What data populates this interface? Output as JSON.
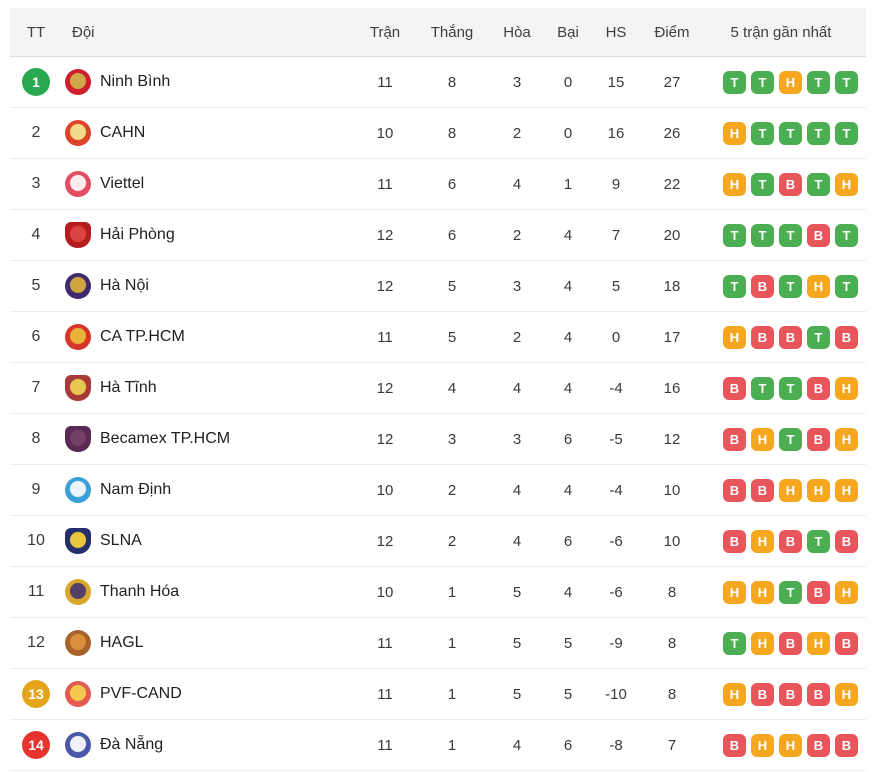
{
  "colors": {
    "form": {
      "T": "#4cae52",
      "H": "#f5a81f",
      "B": "#e8555a"
    },
    "position_badges": {
      "green": "#29a94f",
      "yellow": "#e4a51c",
      "red": "#e6332e"
    },
    "header_bg": "#f4f4f4"
  },
  "table": {
    "headers": {
      "position": "TT",
      "team": "Đội",
      "played": "Trận",
      "won": "Thắng",
      "drawn": "Hòa",
      "lost": "Bại",
      "goal_diff": "HS",
      "points": "Điểm",
      "form": "5 trận gần nhất"
    },
    "rows": [
      {
        "position": "1",
        "position_badge": "green",
        "team": "Ninh Bình",
        "logo": {
          "shape": "circle",
          "outer": "#cf1f2e",
          "inner": "#cfa84a"
        },
        "played": "11",
        "won": "8",
        "drawn": "3",
        "lost": "0",
        "goal_diff": "15",
        "points": "27",
        "form": [
          "T",
          "T",
          "H",
          "T",
          "T"
        ]
      },
      {
        "position": "2",
        "position_badge": null,
        "team": "CAHN",
        "logo": {
          "shape": "circle",
          "outer": "#dd4327",
          "inner": "#f3d98c"
        },
        "played": "10",
        "won": "8",
        "drawn": "2",
        "lost": "0",
        "goal_diff": "16",
        "points": "26",
        "form": [
          "H",
          "T",
          "T",
          "T",
          "T"
        ]
      },
      {
        "position": "3",
        "position_badge": null,
        "team": "Viettel",
        "logo": {
          "shape": "circle",
          "outer": "#e34d63",
          "inner": "#fdecef"
        },
        "played": "11",
        "won": "6",
        "drawn": "4",
        "lost": "1",
        "goal_diff": "9",
        "points": "22",
        "form": [
          "H",
          "T",
          "B",
          "T",
          "H"
        ]
      },
      {
        "position": "4",
        "position_badge": null,
        "team": "Hải Phòng",
        "logo": {
          "shape": "shield",
          "outer": "#b71c1c",
          "inner": "#d9453e"
        },
        "played": "12",
        "won": "6",
        "drawn": "2",
        "lost": "4",
        "goal_diff": "7",
        "points": "20",
        "form": [
          "T",
          "T",
          "T",
          "B",
          "T"
        ]
      },
      {
        "position": "5",
        "position_badge": null,
        "team": "Hà Nội",
        "logo": {
          "shape": "circle",
          "outer": "#3f2a6e",
          "inner": "#cfa63e"
        },
        "played": "12",
        "won": "5",
        "drawn": "3",
        "lost": "4",
        "goal_diff": "5",
        "points": "18",
        "form": [
          "T",
          "B",
          "T",
          "H",
          "T"
        ]
      },
      {
        "position": "6",
        "position_badge": null,
        "team": "CA TP.HCM",
        "logo": {
          "shape": "circle",
          "outer": "#d7342a",
          "inner": "#e8b53a"
        },
        "played": "11",
        "won": "5",
        "drawn": "2",
        "lost": "4",
        "goal_diff": "0",
        "points": "17",
        "form": [
          "H",
          "B",
          "B",
          "T",
          "B"
        ]
      },
      {
        "position": "7",
        "position_badge": null,
        "team": "Hà Tĩnh",
        "logo": {
          "shape": "shield",
          "outer": "#a93a3a",
          "inner": "#e8c84f"
        },
        "played": "12",
        "won": "4",
        "drawn": "4",
        "lost": "4",
        "goal_diff": "-4",
        "points": "16",
        "form": [
          "B",
          "T",
          "T",
          "B",
          "H"
        ]
      },
      {
        "position": "8",
        "position_badge": null,
        "team": "Becamex TP.HCM",
        "logo": {
          "shape": "shield",
          "outer": "#5a2a52",
          "inner": "#744069"
        },
        "played": "12",
        "won": "3",
        "drawn": "3",
        "lost": "6",
        "goal_diff": "-5",
        "points": "12",
        "form": [
          "B",
          "H",
          "T",
          "B",
          "H"
        ]
      },
      {
        "position": "9",
        "position_badge": null,
        "team": "Nam Định",
        "logo": {
          "shape": "circle",
          "outer": "#3aa0d8",
          "inner": "#eaf5fc"
        },
        "played": "10",
        "won": "2",
        "drawn": "4",
        "lost": "4",
        "goal_diff": "-4",
        "points": "10",
        "form": [
          "B",
          "B",
          "H",
          "H",
          "H"
        ]
      },
      {
        "position": "10",
        "position_badge": null,
        "team": "SLNA",
        "logo": {
          "shape": "shield",
          "outer": "#24306b",
          "inner": "#e9c63c"
        },
        "played": "12",
        "won": "2",
        "drawn": "4",
        "lost": "6",
        "goal_diff": "-6",
        "points": "10",
        "form": [
          "B",
          "H",
          "B",
          "T",
          "B"
        ]
      },
      {
        "position": "11",
        "position_badge": null,
        "team": "Thanh Hóa",
        "logo": {
          "shape": "circle",
          "outer": "#d9a62e",
          "inner": "#55406a"
        },
        "played": "10",
        "won": "1",
        "drawn": "5",
        "lost": "4",
        "goal_diff": "-6",
        "points": "8",
        "form": [
          "H",
          "H",
          "T",
          "B",
          "H"
        ]
      },
      {
        "position": "12",
        "position_badge": null,
        "team": "HAGL",
        "logo": {
          "shape": "circle",
          "outer": "#a9612b",
          "inner": "#d98f3c"
        },
        "played": "11",
        "won": "1",
        "drawn": "5",
        "lost": "5",
        "goal_diff": "-9",
        "points": "8",
        "form": [
          "T",
          "H",
          "B",
          "H",
          "B"
        ]
      },
      {
        "position": "13",
        "position_badge": "yellow",
        "team": "PVF-CAND",
        "logo": {
          "shape": "circle",
          "outer": "#e55a50",
          "inner": "#f2c94c"
        },
        "played": "11",
        "won": "1",
        "drawn": "5",
        "lost": "5",
        "goal_diff": "-10",
        "points": "8",
        "form": [
          "H",
          "B",
          "B",
          "B",
          "H"
        ]
      },
      {
        "position": "14",
        "position_badge": "red",
        "team": "Đà Nẵng",
        "logo": {
          "shape": "circle",
          "outer": "#4a58a8",
          "inner": "#f0f2fa"
        },
        "played": "11",
        "won": "1",
        "drawn": "4",
        "lost": "6",
        "goal_diff": "-8",
        "points": "7",
        "form": [
          "B",
          "H",
          "H",
          "B",
          "B"
        ]
      }
    ]
  }
}
